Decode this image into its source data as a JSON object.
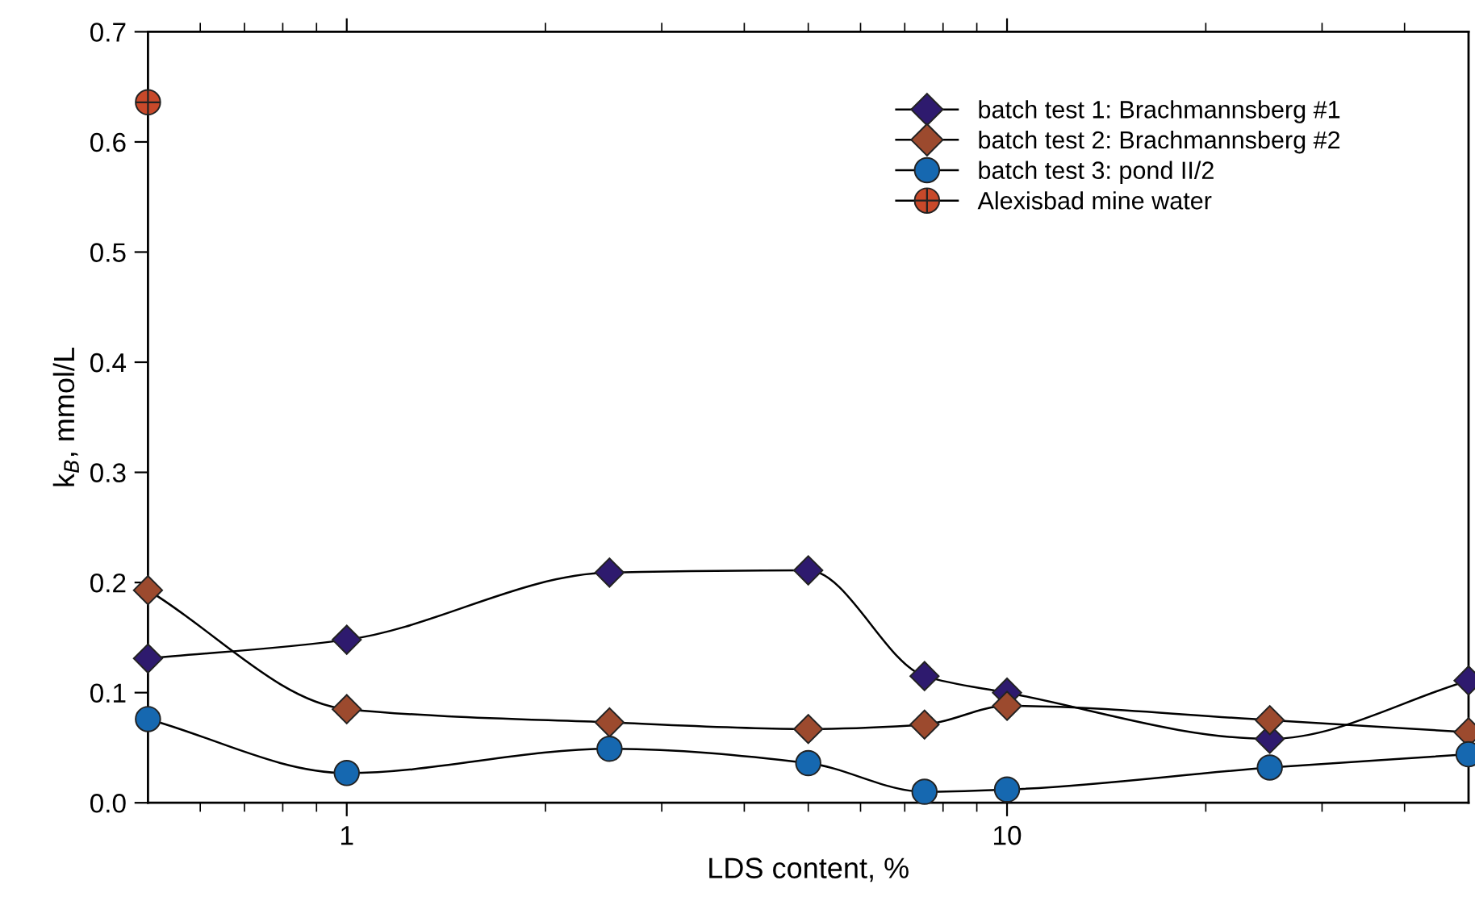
{
  "chart_data": {
    "type": "line",
    "xlabel": "LDS content, %",
    "ylabel": "k$_{B}$, mmol/L",
    "log": "x",
    "xlim": [
      0.5,
      50
    ],
    "ylim": [
      0.0,
      0.7
    ],
    "xticks": [
      {
        "value": 0.6,
        "label": null
      },
      {
        "value": 0.7,
        "label": null
      },
      {
        "value": 0.8,
        "label": null
      },
      {
        "value": 0.9,
        "label": null
      },
      1,
      {
        "value": 2,
        "label": null
      },
      {
        "value": 3,
        "label": null
      },
      {
        "value": 4,
        "label": null
      },
      {
        "value": 5,
        "label": null
      },
      {
        "value": 6,
        "label": null
      },
      {
        "value": 7,
        "label": null
      },
      {
        "value": 8,
        "label": null
      },
      {
        "value": 9,
        "label": null
      },
      10,
      {
        "value": 20,
        "label": null
      },
      {
        "value": 30,
        "label": null
      },
      {
        "value": 40,
        "label": null
      }
    ],
    "yticks": [
      {
        "value": 0.0,
        "label": "0.0"
      },
      0.1,
      0.2,
      0.3,
      0.4,
      0.5,
      0.6,
      0.7
    ],
    "grid": false,
    "legend": "top right",
    "line_style": "solid",
    "series": [
      {
        "name": "batch test 1: Brachmannsberg #1",
        "color": "#2e1a6e",
        "marker": "diamond",
        "x": [
          0.5,
          1,
          2.5,
          5,
          7.5,
          10,
          25,
          50
        ],
        "values": [
          0.131,
          0.148,
          0.209,
          0.211,
          0.115,
          0.1,
          0.058,
          0.111
        ]
      },
      {
        "name": "batch test 2: Brachmannsberg #2",
        "color": "#9c4a2e",
        "marker": "diamond",
        "x": [
          0.5,
          1,
          2.5,
          5,
          7.5,
          10,
          25,
          50
        ],
        "values": [
          0.193,
          0.085,
          0.073,
          0.067,
          0.071,
          0.088,
          0.075,
          0.064
        ]
      },
      {
        "name": "batch test 3: pond II/2",
        "color": "#1668b0",
        "marker": "circle",
        "x": [
          0.5,
          1,
          2.5,
          5,
          7.5,
          10,
          25,
          50
        ],
        "values": [
          0.076,
          0.027,
          0.049,
          0.036,
          0.01,
          0.012,
          0.032,
          0.044
        ]
      },
      {
        "name": "Alexisbad mine water",
        "color": "#c8492a",
        "marker": "circle_cross",
        "x": [
          0.5
        ],
        "values": [
          0.636
        ]
      }
    ]
  }
}
